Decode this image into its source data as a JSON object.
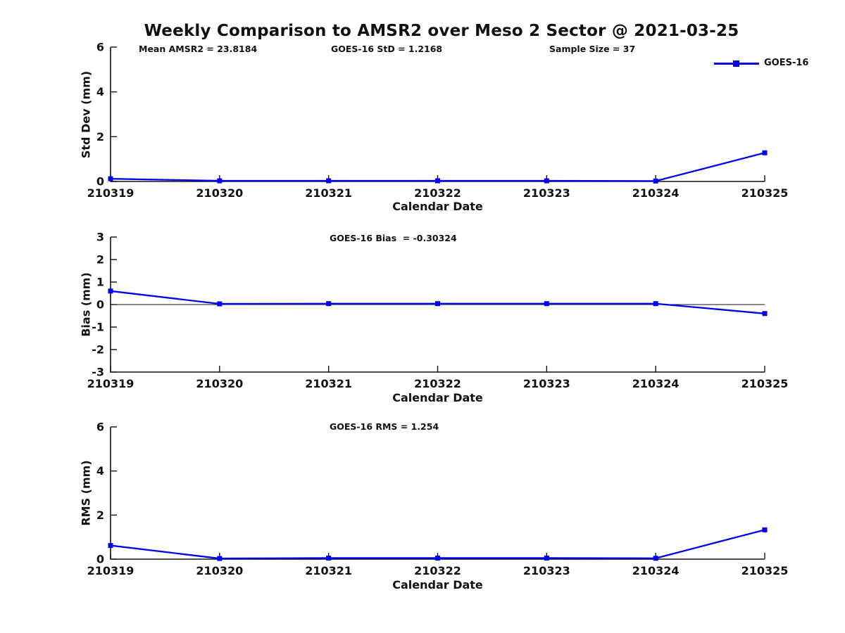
{
  "title": "Weekly Comparison to AMSR2 over Meso 2 Sector @ 2021-03-25",
  "header_stats": {
    "mean_amsr2": "Mean AMSR2 = 23.8184",
    "goes16_std": "GOES-16 StD = 1.2168",
    "sample_size": "Sample Size = 37"
  },
  "legend": {
    "label": "GOES-16",
    "color": "#0000ee",
    "position": "top-right",
    "marker": "filled-square"
  },
  "chart_data": [
    {
      "type": "line",
      "title": "",
      "annotation": "",
      "xlabel": "Calendar Date",
      "ylabel": "Std Dev (mm)",
      "categories": [
        "210319",
        "210320",
        "210321",
        "210322",
        "210323",
        "210324",
        "210325"
      ],
      "series": [
        {
          "name": "GOES-16",
          "color": "#0000ee",
          "values": [
            0.12,
            0.03,
            0.03,
            0.03,
            0.03,
            0.02,
            1.28
          ]
        }
      ],
      "ylim": [
        0,
        6
      ],
      "yticks": [
        0,
        2,
        4,
        6
      ],
      "grid": false,
      "zero_line": false
    },
    {
      "type": "line",
      "title": "",
      "annotation": "GOES-16 Bias  = -0.30324",
      "xlabel": "Calendar Date",
      "ylabel": "Bias (mm)",
      "categories": [
        "210319",
        "210320",
        "210321",
        "210322",
        "210323",
        "210324",
        "210325"
      ],
      "series": [
        {
          "name": "GOES-16",
          "color": "#0000ee",
          "values": [
            0.6,
            0.03,
            0.04,
            0.04,
            0.04,
            0.04,
            -0.4
          ]
        }
      ],
      "ylim": [
        -3,
        3
      ],
      "yticks": [
        3,
        2,
        1,
        0,
        -1,
        -2,
        -3
      ],
      "grid": false,
      "zero_line": true
    },
    {
      "type": "line",
      "title": "",
      "annotation": "GOES-16 RMS = 1.254",
      "xlabel": "Calendar Date",
      "ylabel": "RMS (mm)",
      "categories": [
        "210319",
        "210320",
        "210321",
        "210322",
        "210323",
        "210324",
        "210325"
      ],
      "series": [
        {
          "name": "GOES-16",
          "color": "#0000ee",
          "values": [
            0.62,
            0.03,
            0.05,
            0.05,
            0.05,
            0.04,
            1.33
          ]
        }
      ],
      "ylim": [
        0,
        6
      ],
      "yticks": [
        0,
        2,
        4,
        6
      ],
      "grid": false,
      "zero_line": false
    }
  ]
}
